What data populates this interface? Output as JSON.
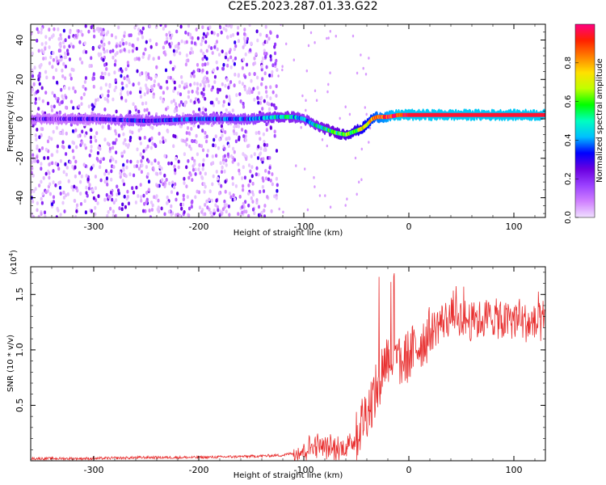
{
  "title": "C2E5.2023.287.01.33.G22",
  "chart_data": [
    {
      "type": "heatmap",
      "xlabel": "Height of straight line (km)",
      "ylabel": "Frequency (Hz)",
      "xlim": [
        -360,
        130
      ],
      "ylim": [
        -50,
        48
      ],
      "xticks": [
        -300,
        -200,
        -100,
        0,
        100
      ],
      "yticks": [
        -40,
        -20,
        0,
        20,
        40
      ],
      "colorbar": {
        "label": "Normalized spectral amplitude",
        "range": [
          0.0,
          1.0
        ],
        "ticks": [
          0.0,
          0.2,
          0.4,
          0.6,
          0.8
        ],
        "colormap": [
          "#f0e0ff",
          "#d080ff",
          "#9a40ff",
          "#6a00e0",
          "#0000ff",
          "#00c0ff",
          "#00ffc0",
          "#00ff00",
          "#c0ff00",
          "#ffe000",
          "#ff8000",
          "#ff2000",
          "#ff0080"
        ]
      },
      "signal_track": {
        "x": [
          -360,
          -300,
          -250,
          -200,
          -150,
          -125,
          -110,
          -100,
          -90,
          -80,
          -70,
          -60,
          -50,
          -45,
          -40,
          -35,
          -30,
          -20,
          -10,
          0,
          50,
          130
        ],
        "freq": [
          0,
          0,
          -1,
          0,
          0,
          1,
          1,
          0,
          -3,
          -5,
          -7,
          -8,
          -6,
          -5,
          -3,
          0,
          1,
          1,
          2,
          2,
          2,
          2
        ],
        "amplitude": [
          0.2,
          0.22,
          0.3,
          0.3,
          0.35,
          0.45,
          0.45,
          0.4,
          0.45,
          0.5,
          0.55,
          0.6,
          0.65,
          0.7,
          0.75,
          0.8,
          0.85,
          0.9,
          0.95,
          0.95,
          0.95,
          0.95
        ]
      },
      "noise_region_end": -125
    },
    {
      "type": "line",
      "xlabel": "Height of straight line (km)",
      "ylabel": "SNR (10 * v/v)",
      "yscale_label": "(x10",
      "yscale_exponent": "4",
      "yscale_suffix": ")",
      "xlim": [
        -360,
        130
      ],
      "ylim": [
        0,
        1.75
      ],
      "xticks": [
        -300,
        -200,
        -100,
        0,
        100
      ],
      "yticks": [
        0.5,
        1.0,
        1.5
      ],
      "series": [
        {
          "color": "#e83030",
          "x": [
            -360,
            -300,
            -250,
            -200,
            -150,
            -120,
            -105,
            -95,
            -88,
            -80,
            -70,
            -60,
            -50,
            -45,
            -40,
            -35,
            -30,
            -25,
            -20,
            -15,
            -10,
            0,
            10,
            20,
            30,
            40,
            50,
            60,
            70,
            80,
            90,
            100,
            110,
            120,
            130
          ],
          "y": [
            0.02,
            0.02,
            0.03,
            0.03,
            0.04,
            0.05,
            0.08,
            0.12,
            0.15,
            0.12,
            0.1,
            0.12,
            0.2,
            0.35,
            0.45,
            0.55,
            0.65,
            0.85,
            0.95,
            0.9,
            0.85,
            0.95,
            1.05,
            1.15,
            1.25,
            1.3,
            1.3,
            1.25,
            1.28,
            1.3,
            1.25,
            1.28,
            1.25,
            1.22,
            1.25
          ]
        }
      ]
    }
  ]
}
